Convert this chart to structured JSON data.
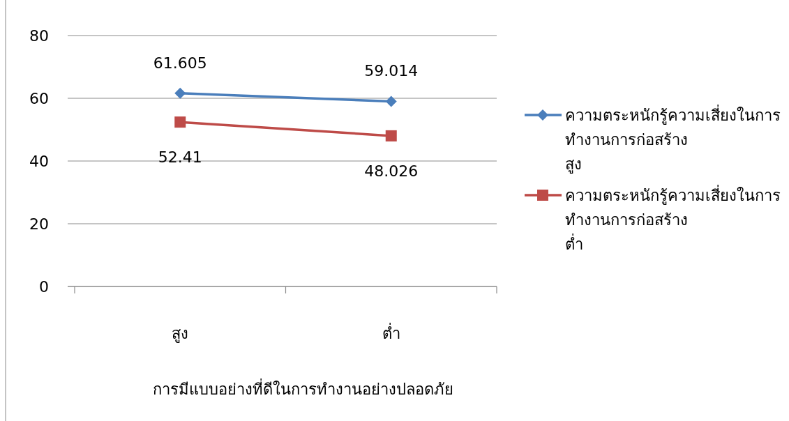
{
  "chart_data": {
    "type": "line",
    "xlabel": "การมีแบบอย่างที่ดีในการทำงานอย่างปลอดภัย",
    "categories": [
      "สูง",
      "ต่ำ"
    ],
    "series": [
      {
        "name": "ความตระหนักรู้ความเสี่ยงในการทำงานการก่อสร้าง สูง",
        "color": "#4a7ebb",
        "marker": "diamond",
        "values": [
          61.605,
          59.014
        ]
      },
      {
        "name": "ความตระหนักรู้ความเสี่ยงในการทำงานการก่อสร้าง ต่ำ",
        "color": "#be4b48",
        "marker": "square",
        "values": [
          52.41,
          48.026
        ]
      }
    ],
    "ylim": [
      0,
      80
    ],
    "yticks": [
      0,
      20,
      40,
      60,
      80
    ],
    "grid": "y",
    "legend": "right",
    "data_labels": true
  }
}
